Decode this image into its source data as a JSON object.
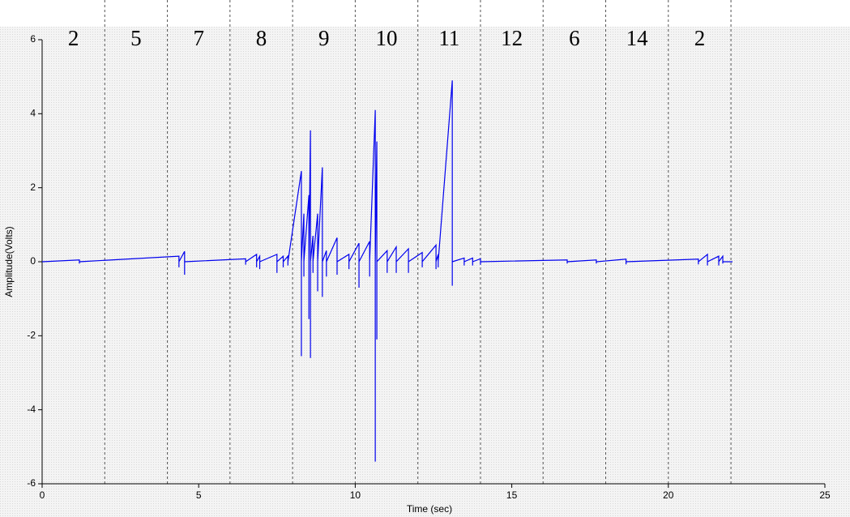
{
  "chart_data": {
    "type": "line",
    "xlabel": "Time (sec)",
    "ylabel": "Amplitude(Volts)",
    "xlim": [
      0,
      25
    ],
    "xticks": [
      0,
      5,
      10,
      15,
      20,
      25
    ],
    "ylim": [
      -6,
      6
    ],
    "yticks": [
      -6,
      -4,
      -2,
      0,
      2,
      4,
      6
    ],
    "dividers": [
      2,
      4,
      6,
      8,
      10,
      12,
      14,
      16,
      18,
      20,
      22
    ],
    "segment_counts": [
      2,
      5,
      7,
      8,
      9,
      10,
      11,
      12,
      6,
      14,
      2
    ],
    "series": [
      {
        "color": "#0000ee",
        "x": [
          0,
          1.19,
          1.19,
          1.19,
          4.37,
          4.37,
          4.37,
          4.55,
          4.55,
          4.55,
          6.5,
          6.5,
          6.5,
          6.85,
          6.85,
          6.85,
          6.95,
          6.95,
          6.95,
          7.5,
          7.5,
          7.5,
          7.7,
          7.7,
          7.7,
          7.85,
          7.85,
          7.85,
          8.28,
          8.28,
          8.28,
          8.36,
          8.36,
          8.36,
          8.52,
          8.52,
          8.52,
          8.57,
          8.57,
          8.57,
          8.65,
          8.65,
          8.65,
          8.8,
          8.8,
          8.8,
          8.95,
          8.95,
          8.95,
          9.08,
          9.08,
          9.08,
          9.42,
          9.42,
          9.42,
          9.8,
          9.8,
          9.8,
          10.12,
          10.12,
          10.12,
          10.46,
          10.46,
          10.46,
          10.64,
          10.64,
          10.64,
          10.69,
          10.69,
          10.69,
          11.02,
          11.02,
          11.02,
          11.31,
          11.31,
          11.31,
          11.7,
          11.7,
          11.7,
          12.14,
          12.14,
          12.14,
          12.58,
          12.58,
          12.58,
          12.65,
          12.65,
          12.65,
          13.1,
          13.1,
          13.1,
          13.48,
          13.48,
          13.48,
          13.75,
          13.75,
          13.75,
          14.0,
          14.0,
          14.0,
          16.77,
          16.77,
          16.77,
          17.7,
          17.7,
          17.7,
          18.65,
          18.65,
          18.65,
          20.96,
          20.96,
          20.96,
          21.25,
          21.25,
          21.25,
          21.61,
          21.61,
          21.61,
          21.74,
          21.74,
          21.74,
          22.05
        ],
        "values": [
          0,
          0.05,
          -0.05,
          0,
          0.15,
          -0.15,
          0,
          0.28,
          -0.35,
          0,
          0.08,
          -0.08,
          0,
          0.2,
          -0.15,
          0,
          0.15,
          -0.2,
          0,
          0.2,
          -0.3,
          0,
          0.15,
          -0.15,
          0,
          0.15,
          -0.1,
          0,
          2.45,
          -2.55,
          0,
          1.3,
          -0.4,
          0,
          1.8,
          -1.55,
          0,
          3.55,
          -2.6,
          0,
          0.7,
          -0.3,
          0,
          1.3,
          -0.8,
          0,
          2.55,
          -0.95,
          0,
          0.3,
          -0.4,
          0,
          0.65,
          -0.35,
          0,
          0.2,
          -0.2,
          0,
          0.5,
          -0.7,
          0,
          0.55,
          -0.4,
          0,
          4.1,
          -5.4,
          0,
          3.25,
          -2.1,
          0,
          0.3,
          -0.3,
          0,
          0.4,
          -0.3,
          0,
          0.35,
          -0.3,
          0,
          0.25,
          -0.15,
          0,
          0.45,
          -0.2,
          0,
          0.2,
          -0.15,
          0,
          4.9,
          -0.65,
          0,
          0.1,
          -0.1,
          0,
          0.1,
          -0.1,
          0,
          0.08,
          -0.08,
          0,
          0.05,
          -0.05,
          0,
          0.05,
          -0.05,
          0,
          0.07,
          -0.07,
          0,
          0.07,
          -0.07,
          0,
          0.2,
          -0.1,
          0,
          0.15,
          -0.1,
          0,
          0.15,
          -0.05,
          0,
          0
        ]
      }
    ]
  }
}
